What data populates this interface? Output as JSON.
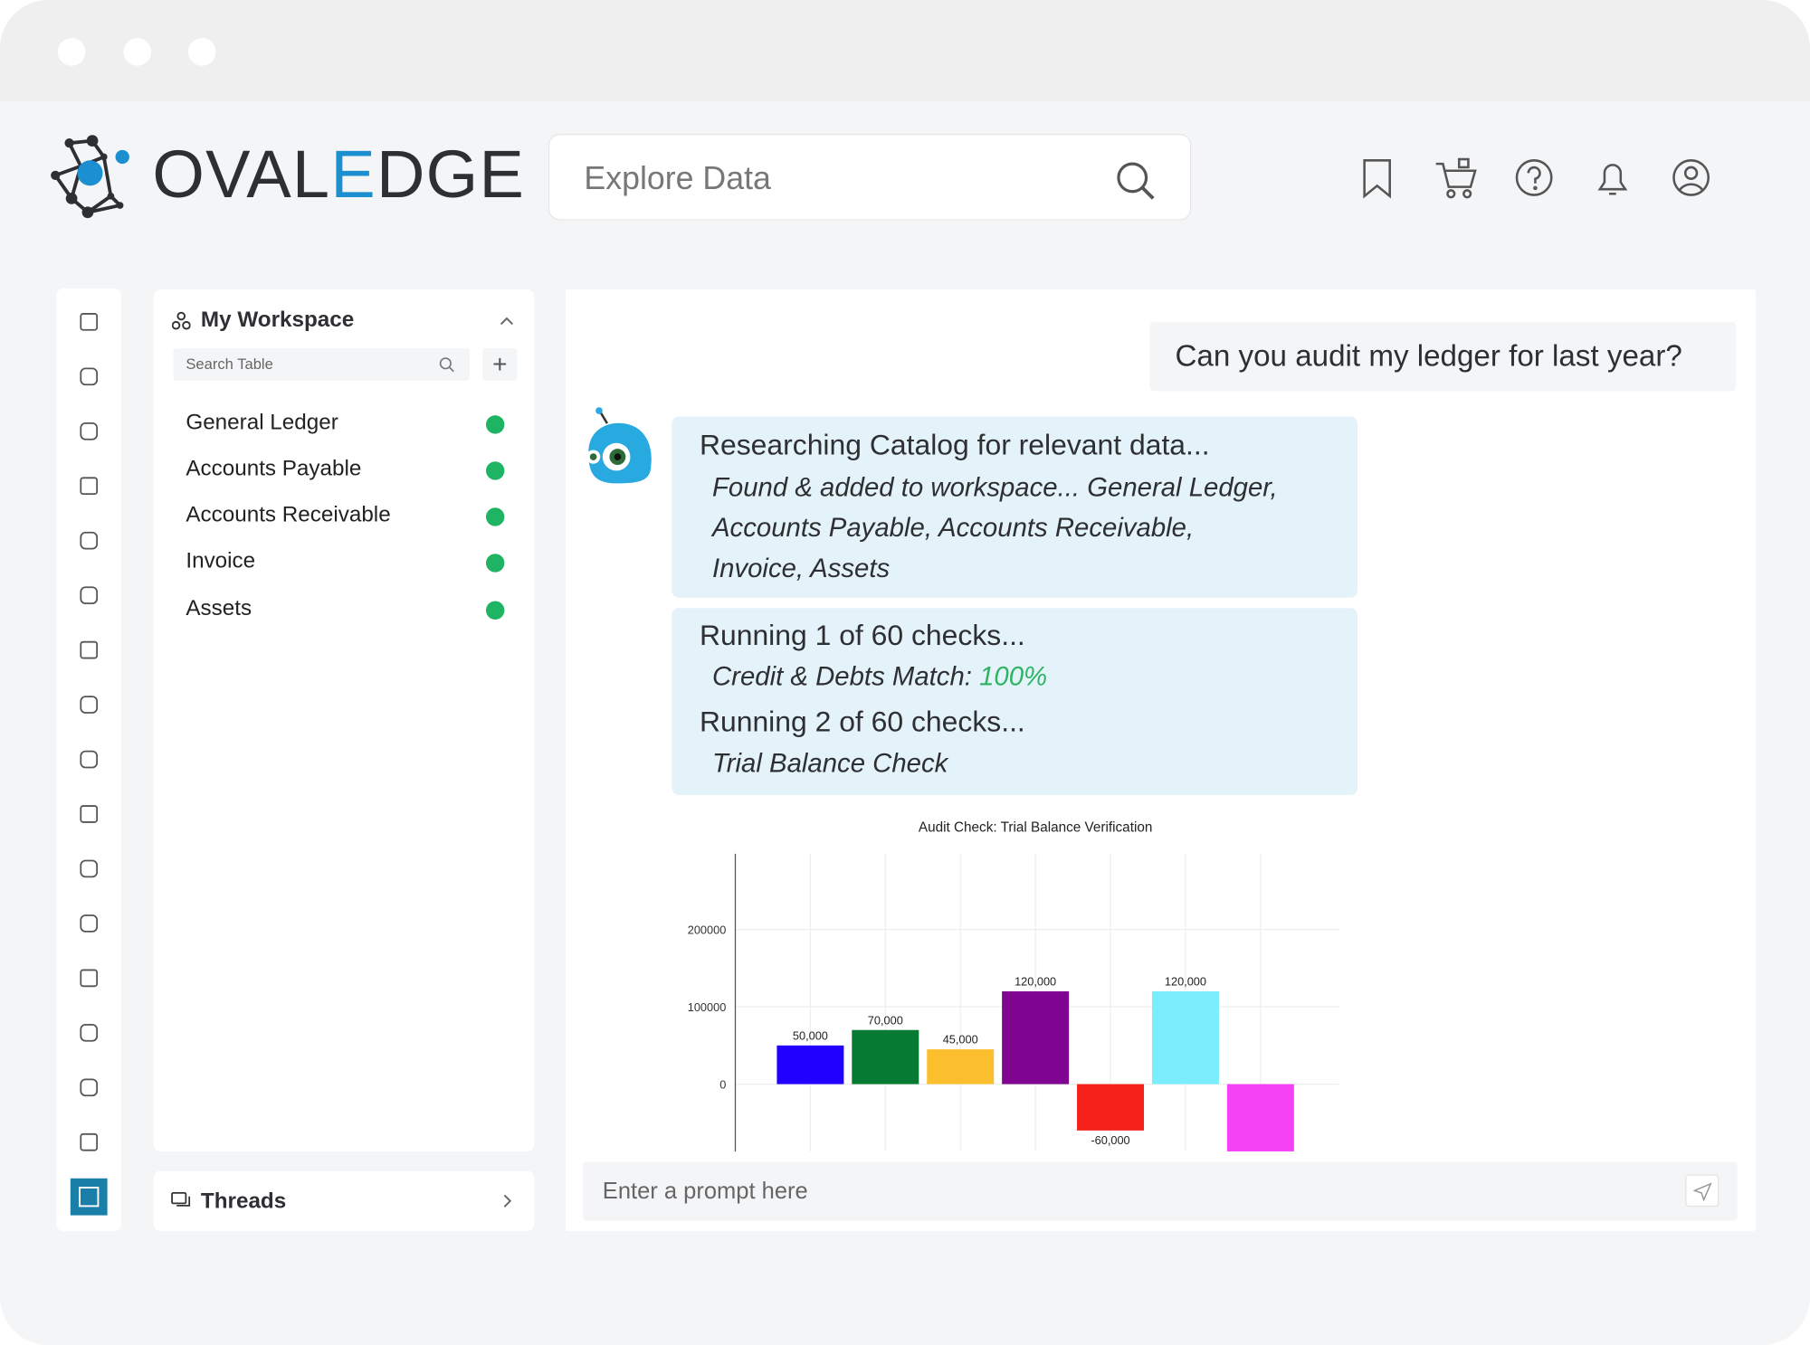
{
  "header": {
    "logo": [
      "OVAL",
      "E",
      "DGE"
    ],
    "search_placeholder": "Explore Data"
  },
  "workspace": {
    "title": "My Workspace",
    "search_placeholder": "Search Table",
    "tables": [
      "General Ledger",
      "Accounts Payable",
      "Accounts Receivable",
      "Invoice",
      "Assets"
    ]
  },
  "threads": {
    "title": "Threads"
  },
  "chat": {
    "user_message": "Can you audit my ledger for last year?",
    "research": {
      "heading": "Researching Catalog for relevant data...",
      "lines": [
        "Found & added to workspace... General Ledger,",
        "Accounts Payable, Accounts Receivable,",
        "Invoice, Assets"
      ]
    },
    "checks": [
      {
        "heading": "Running 1 of 60 checks...",
        "detail": "Credit & Debts Match:",
        "result": "100%"
      },
      {
        "heading": "Running 2 of 60 checks...",
        "detail": "Trial Balance Check"
      }
    ],
    "prompt_placeholder": "Enter a prompt here"
  },
  "chart_data": {
    "type": "bar",
    "title": "Audit Check: Trial Balance Verification",
    "categories": [
      null,
      null,
      null,
      null,
      null,
      null,
      null
    ],
    "values": [
      50000,
      70000,
      45000,
      120000,
      -60000,
      120000,
      -87000
    ],
    "value_labels": [
      "50,000",
      "70,000",
      "45,000",
      "120,000",
      "-60,000",
      "120,000",
      null
    ],
    "colors": [
      "#2200ff",
      "#067a32",
      "#fbbf2e",
      "#7f0590",
      "#f5221b",
      "#7aeefc",
      "#f542f5"
    ],
    "ylim": [
      -87000,
      298000
    ],
    "yticks": [
      0,
      100000,
      200000
    ],
    "grid": true
  }
}
